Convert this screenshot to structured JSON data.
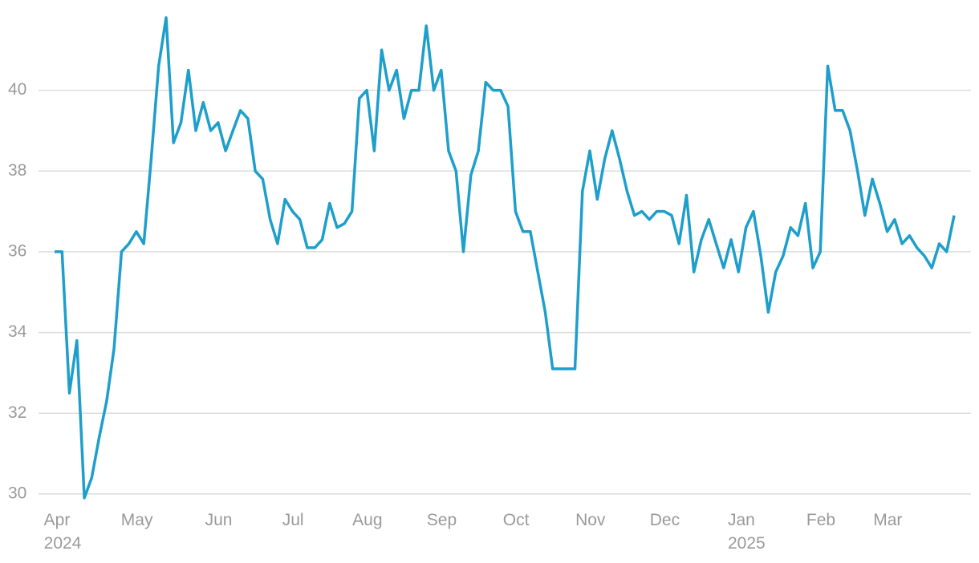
{
  "chart_data": {
    "type": "line",
    "categories": [
      "Apr\n2024",
      null,
      null,
      null,
      null,
      null,
      null,
      null,
      null,
      null,
      "May",
      null,
      null,
      null,
      null,
      null,
      null,
      null,
      null,
      null,
      null,
      "Jun",
      null,
      null,
      null,
      null,
      null,
      null,
      null,
      null,
      null,
      "Jul",
      null,
      null,
      null,
      null,
      null,
      null,
      null,
      null,
      null,
      "Aug",
      null,
      null,
      null,
      null,
      null,
      null,
      null,
      null,
      null,
      "Sep",
      null,
      null,
      null,
      null,
      null,
      null,
      null,
      null,
      null,
      "Oct",
      null,
      null,
      null,
      null,
      null,
      null,
      null,
      null,
      null,
      "Nov",
      null,
      null,
      null,
      null,
      null,
      null,
      null,
      null,
      null,
      "Dec",
      null,
      null,
      null,
      null,
      null,
      null,
      null,
      null,
      null,
      null,
      "Jan\n2025",
      null,
      null,
      null,
      null,
      null,
      null,
      null,
      null,
      null,
      "Feb",
      null,
      null,
      null,
      null,
      null,
      null,
      null,
      null,
      "Mar",
      null,
      null,
      null,
      null,
      null,
      null,
      null,
      null,
      null,
      null
    ],
    "values": [
      36,
      36,
      32.5,
      33.8,
      29.9,
      30.4,
      31.4,
      32.3,
      33.6,
      36,
      36.2,
      36.5,
      36.2,
      38.3,
      40.6,
      41.8,
      38.7,
      39.2,
      40.5,
      39,
      39.7,
      39.0,
      39.2,
      38.5,
      39,
      39.5,
      39.3,
      38,
      37.8,
      36.8,
      36.2,
      37.3,
      37,
      36.8,
      36.1,
      36.1,
      36.3,
      37.2,
      36.6,
      36.7,
      37,
      39.8,
      40,
      38.5,
      41,
      40,
      40.5,
      39.3,
      40,
      40,
      41.6,
      40,
      40.5,
      38.5,
      38,
      36,
      37.9,
      38.5,
      40.2,
      40,
      40,
      39.6,
      37,
      36.5,
      36.5,
      35.5,
      34.5,
      33.1,
      33.1,
      33.1,
      33.1,
      37.5,
      38.5,
      37.3,
      38.3,
      39,
      38.3,
      37.5,
      36.9,
      37,
      36.8,
      37,
      37,
      36.9,
      36.2,
      37.4,
      35.5,
      36.3,
      36.8,
      36.2,
      35.6,
      36.3,
      35.5,
      36.6,
      37,
      35.9,
      34.5,
      35.5,
      35.9,
      36.6,
      36.4,
      37.2,
      35.6,
      36,
      40.6,
      39.5,
      39.5,
      39,
      38,
      36.9,
      37.8,
      37.2,
      36.5,
      36.8,
      36.2,
      36.4,
      36.1,
      35.9,
      35.6,
      36.2,
      36,
      36.9
    ],
    "color": "#1e9fcb",
    "ylim": [
      29.6,
      41.9
    ],
    "yticks": [
      30,
      32,
      34,
      36,
      38,
      40
    ],
    "grid": true
  }
}
